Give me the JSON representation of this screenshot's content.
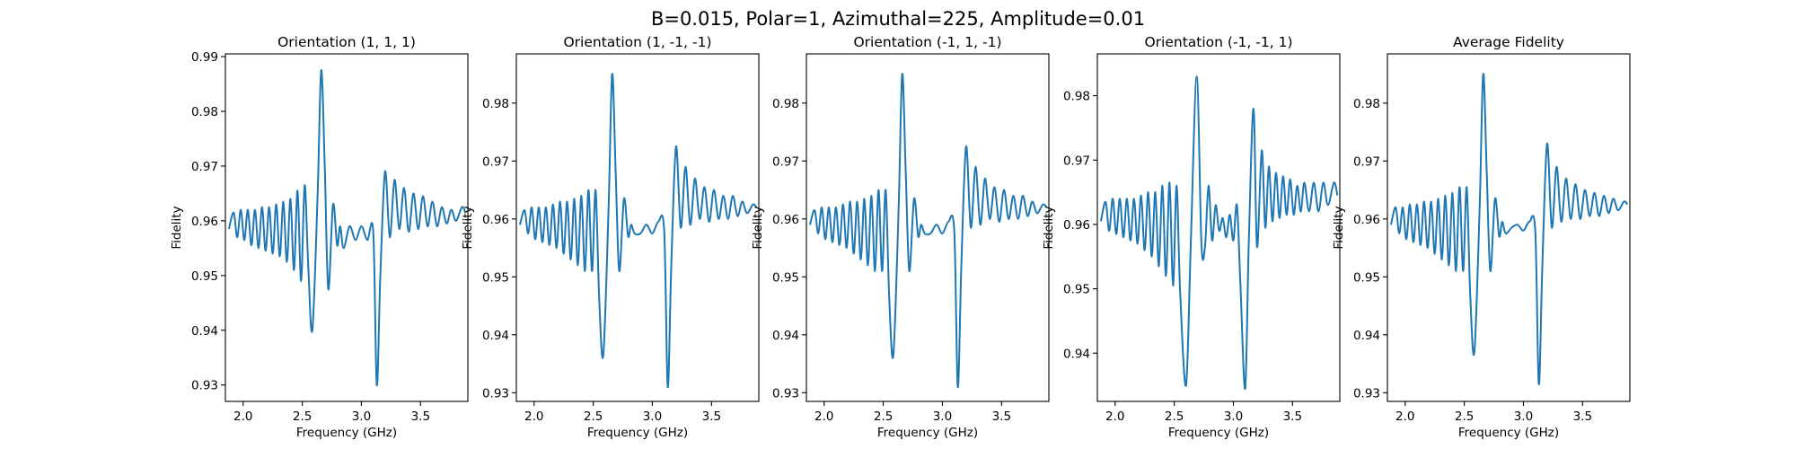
{
  "figure": {
    "suptitle": "B=0.015, Polar=1, Azimuthal=225, Amplitude=0.01",
    "line_color": "#1f77b4"
  },
  "chart_data": [
    {
      "type": "line",
      "title": "Orientation (1, 1, 1)",
      "xlabel": "Frequency (GHz)",
      "ylabel": "Fidelity",
      "xlim": [
        1.85,
        3.9
      ],
      "ylim": [
        0.927,
        0.9905
      ],
      "xticks": [
        2.0,
        2.5,
        3.0,
        3.5
      ],
      "yticks": [
        0.93,
        0.94,
        0.95,
        0.96,
        0.97,
        0.98,
        0.99
      ],
      "series": [
        {
          "x": [
            1.88,
            1.92,
            1.95,
            1.98,
            2.01,
            2.04,
            2.07,
            2.1,
            2.13,
            2.16,
            2.19,
            2.22,
            2.25,
            2.28,
            2.31,
            2.34,
            2.37,
            2.4,
            2.43,
            2.46,
            2.49,
            2.52,
            2.55,
            2.585,
            2.63,
            2.66,
            2.69,
            2.72,
            2.76,
            2.795,
            2.82,
            2.85,
            2.9,
            2.95,
            3.0,
            3.05,
            3.1,
            3.13,
            3.16,
            3.2,
            3.24,
            3.28,
            3.32,
            3.36,
            3.4,
            3.44,
            3.48,
            3.52,
            3.56,
            3.6,
            3.64,
            3.68,
            3.72,
            3.76,
            3.8,
            3.85,
            3.88
          ],
          "y": [
            0.9585,
            0.9615,
            0.957,
            0.962,
            0.9565,
            0.962,
            0.9555,
            0.962,
            0.955,
            0.9625,
            0.9545,
            0.9625,
            0.954,
            0.963,
            0.9535,
            0.9635,
            0.9525,
            0.964,
            0.951,
            0.9655,
            0.949,
            0.9665,
            0.952,
            0.94,
            0.965,
            0.9875,
            0.97,
            0.9475,
            0.963,
            0.9555,
            0.959,
            0.955,
            0.959,
            0.9565,
            0.959,
            0.9565,
            0.958,
            0.93,
            0.95,
            0.969,
            0.957,
            0.9675,
            0.9585,
            0.966,
            0.958,
            0.965,
            0.9585,
            0.9645,
            0.959,
            0.9635,
            0.959,
            0.9625,
            0.9595,
            0.962,
            0.96,
            0.9625,
            0.9615
          ]
        }
      ]
    },
    {
      "type": "line",
      "title": "Orientation (1, -1, -1)",
      "xlabel": "Frequency (GHz)",
      "ylabel": "Fidelity",
      "xlim": [
        1.85,
        3.9
      ],
      "ylim": [
        0.9285,
        0.9885
      ],
      "xticks": [
        2.0,
        2.5,
        3.0,
        3.5
      ],
      "yticks": [
        0.93,
        0.94,
        0.95,
        0.96,
        0.97,
        0.98
      ],
      "series": [
        {
          "x": [
            1.88,
            1.92,
            1.95,
            1.98,
            2.01,
            2.04,
            2.07,
            2.1,
            2.13,
            2.16,
            2.19,
            2.22,
            2.25,
            2.28,
            2.31,
            2.34,
            2.37,
            2.4,
            2.43,
            2.46,
            2.49,
            2.52,
            2.55,
            2.585,
            2.63,
            2.66,
            2.69,
            2.72,
            2.76,
            2.795,
            2.82,
            2.85,
            2.9,
            2.95,
            3.0,
            3.05,
            3.1,
            3.13,
            3.16,
            3.2,
            3.24,
            3.28,
            3.32,
            3.36,
            3.4,
            3.44,
            3.48,
            3.52,
            3.56,
            3.6,
            3.64,
            3.68,
            3.72,
            3.76,
            3.8,
            3.85,
            3.88
          ],
          "y": [
            0.959,
            0.9615,
            0.9575,
            0.962,
            0.9565,
            0.962,
            0.956,
            0.962,
            0.9555,
            0.9625,
            0.955,
            0.963,
            0.954,
            0.963,
            0.953,
            0.9635,
            0.952,
            0.964,
            0.951,
            0.965,
            0.951,
            0.965,
            0.9465,
            0.9365,
            0.962,
            0.985,
            0.968,
            0.951,
            0.9635,
            0.957,
            0.959,
            0.9575,
            0.9575,
            0.959,
            0.9575,
            0.9595,
            0.958,
            0.931,
            0.952,
            0.9725,
            0.9585,
            0.969,
            0.959,
            0.967,
            0.96,
            0.9655,
            0.9595,
            0.965,
            0.96,
            0.964,
            0.96,
            0.964,
            0.9605,
            0.963,
            0.961,
            0.9625,
            0.962
          ]
        }
      ]
    },
    {
      "type": "line",
      "title": "Orientation (-1, 1, -1)",
      "xlabel": "Frequency (GHz)",
      "ylabel": "Fidelity",
      "xlim": [
        1.85,
        3.9
      ],
      "ylim": [
        0.9285,
        0.9885
      ],
      "xticks": [
        2.0,
        2.5,
        3.0,
        3.5
      ],
      "yticks": [
        0.93,
        0.94,
        0.95,
        0.96,
        0.97,
        0.98
      ],
      "series": [
        {
          "x": [
            1.88,
            1.92,
            1.95,
            1.98,
            2.01,
            2.04,
            2.07,
            2.1,
            2.13,
            2.16,
            2.19,
            2.22,
            2.25,
            2.28,
            2.31,
            2.34,
            2.37,
            2.4,
            2.43,
            2.46,
            2.49,
            2.52,
            2.55,
            2.585,
            2.63,
            2.66,
            2.69,
            2.72,
            2.76,
            2.795,
            2.82,
            2.85,
            2.9,
            2.95,
            3.0,
            3.05,
            3.1,
            3.13,
            3.16,
            3.2,
            3.24,
            3.28,
            3.32,
            3.36,
            3.4,
            3.44,
            3.48,
            3.52,
            3.56,
            3.6,
            3.64,
            3.68,
            3.72,
            3.76,
            3.8,
            3.85,
            3.88
          ],
          "y": [
            0.959,
            0.9615,
            0.9575,
            0.962,
            0.9565,
            0.962,
            0.956,
            0.962,
            0.9555,
            0.9625,
            0.955,
            0.963,
            0.954,
            0.963,
            0.953,
            0.9635,
            0.952,
            0.964,
            0.951,
            0.965,
            0.951,
            0.965,
            0.9465,
            0.9365,
            0.962,
            0.985,
            0.968,
            0.951,
            0.9635,
            0.957,
            0.959,
            0.9575,
            0.9575,
            0.959,
            0.9575,
            0.9595,
            0.958,
            0.931,
            0.952,
            0.9725,
            0.9585,
            0.969,
            0.959,
            0.967,
            0.96,
            0.9655,
            0.9595,
            0.965,
            0.96,
            0.964,
            0.96,
            0.964,
            0.9605,
            0.963,
            0.961,
            0.9625,
            0.962
          ]
        }
      ]
    },
    {
      "type": "line",
      "title": "Orientation (-1, -1, 1)",
      "xlabel": "Frequency (GHz)",
      "ylabel": "Fidelity",
      "xlim": [
        1.85,
        3.9
      ],
      "ylim": [
        0.9325,
        0.9865
      ],
      "xticks": [
        2.0,
        2.5,
        3.0,
        3.5
      ],
      "yticks": [
        0.94,
        0.95,
        0.96,
        0.97,
        0.98
      ],
      "series": [
        {
          "x": [
            1.88,
            1.92,
            1.95,
            1.98,
            2.01,
            2.04,
            2.07,
            2.1,
            2.13,
            2.16,
            2.19,
            2.22,
            2.25,
            2.28,
            2.31,
            2.34,
            2.37,
            2.4,
            2.43,
            2.46,
            2.49,
            2.52,
            2.55,
            2.6,
            2.64,
            2.69,
            2.73,
            2.76,
            2.79,
            2.82,
            2.85,
            2.88,
            2.91,
            2.94,
            2.97,
            3.0,
            3.03,
            3.06,
            3.1,
            3.13,
            3.17,
            3.2,
            3.24,
            3.27,
            3.3,
            3.33,
            3.36,
            3.39,
            3.42,
            3.45,
            3.48,
            3.51,
            3.54,
            3.57,
            3.6,
            3.64,
            3.68,
            3.72,
            3.76,
            3.8,
            3.85,
            3.88
          ],
          "y": [
            0.9605,
            0.9635,
            0.959,
            0.964,
            0.9585,
            0.964,
            0.958,
            0.964,
            0.9575,
            0.964,
            0.957,
            0.9645,
            0.956,
            0.965,
            0.955,
            0.965,
            0.9535,
            0.966,
            0.952,
            0.9665,
            0.9505,
            0.966,
            0.9495,
            0.935,
            0.957,
            0.983,
            0.957,
            0.9565,
            0.966,
            0.9575,
            0.963,
            0.959,
            0.961,
            0.958,
            0.9615,
            0.9575,
            0.963,
            0.9505,
            0.9345,
            0.957,
            0.978,
            0.9565,
            0.9715,
            0.9595,
            0.969,
            0.9605,
            0.968,
            0.961,
            0.9675,
            0.9615,
            0.967,
            0.9615,
            0.966,
            0.962,
            0.9665,
            0.962,
            0.9665,
            0.962,
            0.9665,
            0.963,
            0.9665,
            0.9645
          ]
        }
      ]
    },
    {
      "type": "line",
      "title": "Average Fidelity",
      "xlabel": "Frequency (GHz)",
      "ylabel": "Fidelity",
      "xlim": [
        1.85,
        3.9
      ],
      "ylim": [
        0.9285,
        0.9885
      ],
      "xticks": [
        2.0,
        2.5,
        3.0,
        3.5
      ],
      "yticks": [
        0.93,
        0.94,
        0.95,
        0.96,
        0.97,
        0.98
      ],
      "series": [
        {
          "x": [
            1.88,
            1.92,
            1.95,
            1.98,
            2.01,
            2.04,
            2.07,
            2.1,
            2.13,
            2.16,
            2.19,
            2.22,
            2.25,
            2.28,
            2.31,
            2.34,
            2.37,
            2.4,
            2.43,
            2.46,
            2.49,
            2.52,
            2.55,
            2.585,
            2.63,
            2.66,
            2.69,
            2.72,
            2.76,
            2.795,
            2.82,
            2.85,
            2.9,
            2.95,
            3.0,
            3.05,
            3.1,
            3.13,
            3.16,
            3.2,
            3.24,
            3.28,
            3.32,
            3.36,
            3.4,
            3.44,
            3.48,
            3.52,
            3.56,
            3.6,
            3.64,
            3.68,
            3.72,
            3.76,
            3.8,
            3.85,
            3.88
          ],
          "y": [
            0.959,
            0.962,
            0.9575,
            0.962,
            0.9565,
            0.9625,
            0.956,
            0.9625,
            0.9555,
            0.963,
            0.955,
            0.963,
            0.954,
            0.9635,
            0.953,
            0.964,
            0.952,
            0.9645,
            0.951,
            0.9655,
            0.951,
            0.9655,
            0.947,
            0.937,
            0.962,
            0.985,
            0.968,
            0.951,
            0.9635,
            0.957,
            0.9595,
            0.9575,
            0.9585,
            0.959,
            0.958,
            0.9595,
            0.958,
            0.9315,
            0.952,
            0.973,
            0.9585,
            0.969,
            0.9595,
            0.967,
            0.96,
            0.966,
            0.96,
            0.965,
            0.9605,
            0.9645,
            0.9605,
            0.964,
            0.961,
            0.9635,
            0.9615,
            0.963,
            0.9625
          ]
        }
      ]
    }
  ]
}
